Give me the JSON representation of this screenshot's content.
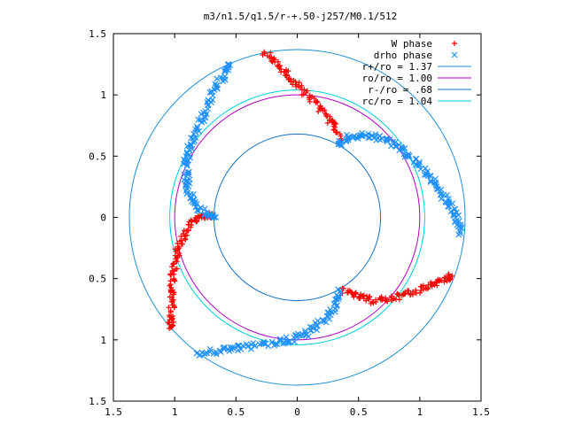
{
  "chart_data": {
    "type": "scatter",
    "title": "m3/n1.5/q1.5/r-+.50-j257/M0.1/512",
    "xlabel": "",
    "ylabel": "",
    "xlim": [
      -1.5,
      1.5
    ],
    "ylim": [
      -1.5,
      1.5
    ],
    "x_ticks": [
      -1.5,
      -1,
      -0.5,
      0,
      0.5,
      1,
      1.5
    ],
    "y_ticks": [
      -1.5,
      -1,
      -0.5,
      0,
      0.5,
      1,
      1.5
    ],
    "x_tick_labels": [
      "1.5",
      "1",
      "0.5",
      "0",
      "0.5",
      "1",
      "1.5"
    ],
    "y_tick_labels": [
      "1.5",
      "1",
      "0.5",
      "0",
      "0.5",
      "1",
      "1.5"
    ],
    "grid": false,
    "legend_position": "top-right",
    "series": [
      {
        "name": "W phase",
        "marker": "+",
        "color": "#ff0000",
        "arms": [
          [
            [
              -0.7,
              0.02
            ],
            [
              -0.78,
              0.01
            ],
            [
              -0.86,
              -0.04
            ],
            [
              -0.92,
              -0.14
            ],
            [
              -0.97,
              -0.26
            ],
            [
              -1.0,
              -0.38
            ],
            [
              -1.02,
              -0.52
            ],
            [
              -1.02,
              -0.66
            ],
            [
              -1.03,
              -0.8
            ],
            [
              -1.03,
              -0.9
            ]
          ],
          [
            [
              0.35,
              0.63
            ],
            [
              0.3,
              0.76
            ],
            [
              0.22,
              0.86
            ],
            [
              0.12,
              0.96
            ],
            [
              0.02,
              1.06
            ],
            [
              -0.08,
              1.16
            ],
            [
              -0.17,
              1.26
            ],
            [
              -0.27,
              1.35
            ]
          ],
          [
            [
              0.38,
              -0.6
            ],
            [
              0.48,
              -0.64
            ],
            [
              0.6,
              -0.68
            ],
            [
              0.72,
              -0.67
            ],
            [
              0.84,
              -0.64
            ],
            [
              0.96,
              -0.6
            ],
            [
              1.08,
              -0.55
            ],
            [
              1.19,
              -0.51
            ],
            [
              1.26,
              -0.48
            ]
          ]
        ]
      },
      {
        "name": "drho phase",
        "marker": "x",
        "color": "#1e90ff",
        "arms": [
          [
            [
              -0.68,
              -0.01
            ],
            [
              -0.78,
              0.05
            ],
            [
              -0.86,
              0.15
            ],
            [
              -0.9,
              0.3
            ],
            [
              -0.9,
              0.45
            ],
            [
              -0.86,
              0.62
            ],
            [
              -0.78,
              0.8
            ],
            [
              -0.7,
              0.98
            ],
            [
              -0.62,
              1.13
            ],
            [
              -0.56,
              1.25
            ]
          ],
          [
            [
              0.33,
              0.6
            ],
            [
              0.44,
              0.66
            ],
            [
              0.58,
              0.67
            ],
            [
              0.72,
              0.64
            ],
            [
              0.86,
              0.56
            ],
            [
              0.98,
              0.44
            ],
            [
              1.1,
              0.3
            ],
            [
              1.2,
              0.16
            ],
            [
              1.3,
              0.02
            ],
            [
              1.33,
              -0.13
            ]
          ],
          [
            [
              0.35,
              -0.6
            ],
            [
              0.3,
              -0.74
            ],
            [
              0.2,
              -0.86
            ],
            [
              0.08,
              -0.95
            ],
            [
              -0.06,
              -1.0
            ],
            [
              -0.24,
              -1.03
            ],
            [
              -0.44,
              -1.06
            ],
            [
              -0.62,
              -1.09
            ],
            [
              -0.82,
              -1.11
            ]
          ]
        ]
      }
    ],
    "circles": [
      {
        "name": "r+/ro = 1.37",
        "radius": 1.37,
        "color": "#1e8fd8"
      },
      {
        "name": "ro/ro = 1.00",
        "radius": 1.0,
        "color": "#b000c8"
      },
      {
        "name": "r-/ro = .68",
        "radius": 0.68,
        "color": "#1070c8"
      },
      {
        "name": "rc/ro = 1.04",
        "radius": 1.04,
        "color": "#00d0d8"
      }
    ]
  }
}
